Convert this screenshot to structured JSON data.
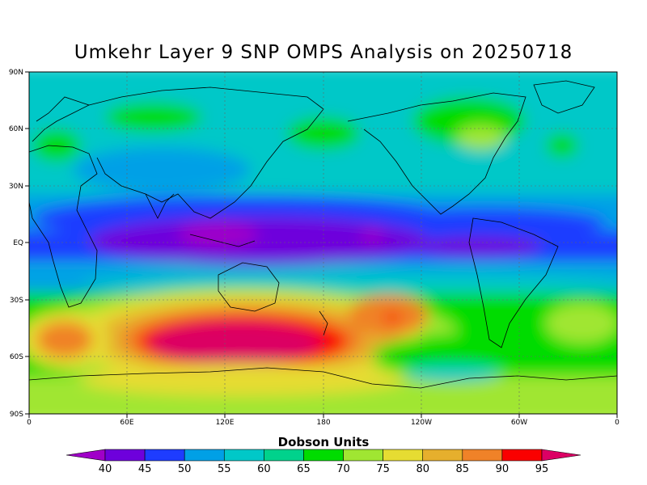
{
  "title": "Umkehr Layer 9 SNP OMPS Analysis on 20250718",
  "colorbar_title": "Dobson Units",
  "colorbar": {
    "levels": [
      "40",
      "45",
      "50",
      "55",
      "60",
      "65",
      "70",
      "75",
      "80",
      "85",
      "90",
      "95"
    ],
    "colors": [
      "#a000c8",
      "#6e00dc",
      "#1e3cff",
      "#00a0e6",
      "#00c8c8",
      "#00d28c",
      "#00dc00",
      "#a0e632",
      "#e6dc32",
      "#e6af2d",
      "#f08228",
      "#fa0000",
      "#dc0064"
    ]
  },
  "axes": {
    "x_ticks": [
      "0",
      "60E",
      "120E",
      "180",
      "120W",
      "60W",
      "0"
    ],
    "y_ticks": [
      "90N",
      "60N",
      "30N",
      "EQ",
      "30S",
      "60S",
      "90S"
    ]
  },
  "chart_data": {
    "type": "heatmap",
    "title": "Umkehr Layer 9 SNP OMPS Analysis on 20250718",
    "colorbar_label": "Dobson Units",
    "lon_range": [
      0,
      360
    ],
    "lat_range": [
      -90,
      90
    ],
    "grid": true,
    "note_regions": [
      {
        "region": "southern mid-latitudes 90E-180E",
        "value_range": [
          90,
          95
        ]
      },
      {
        "region": "tropics 80E-180E",
        "value_range": [
          40,
          45
        ]
      },
      {
        "region": "equatorial band",
        "value_range": [
          45,
          50
        ]
      },
      {
        "region": "northern high latitudes",
        "value_range": [
          55,
          65
        ]
      },
      {
        "region": "southern Atlantic/Indian mid-latitudes",
        "value_range": [
          75,
          85
        ]
      }
    ]
  }
}
